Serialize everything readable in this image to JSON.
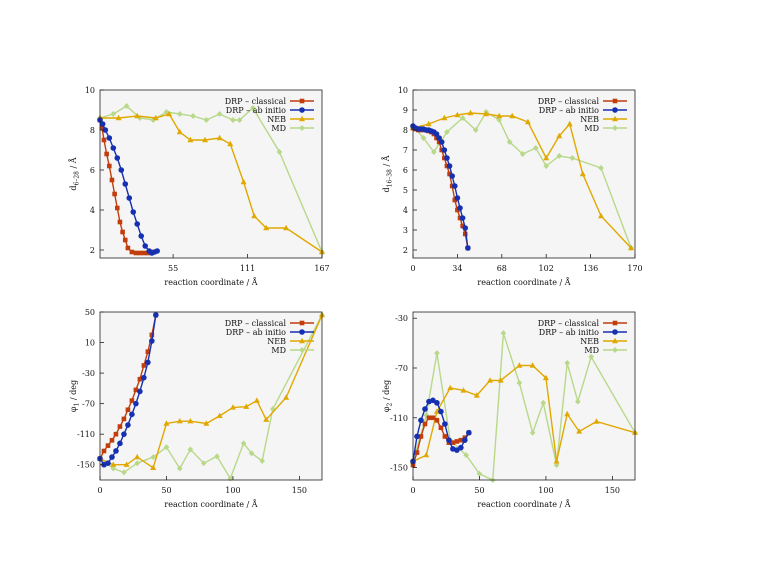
{
  "colors": {
    "classical": "#c23d0c",
    "abinitio": "#1530b0",
    "neb": "#e0a800",
    "md": "#b8d88a",
    "plot_bg": "#f5f5f5"
  },
  "chart_data": [
    {
      "type": "line",
      "xlabel": "reaction coordinate / Å",
      "ylabel": "d6–28 / Å",
      "ylabel_main": "d",
      "ylabel_sub": "6–28",
      "ylabel_unit": " / Å",
      "xlim": [
        0,
        167
      ],
      "ylim": [
        1.6,
        10
      ],
      "xticks": [
        55,
        111,
        167
      ],
      "yticks": [
        2,
        4,
        6,
        8,
        10
      ],
      "grid": false,
      "legend_position": "top-right",
      "series": [
        {
          "name": "DRP – classical",
          "marker": "square",
          "x": [
            0,
            1.5,
            3,
            5,
            7,
            9,
            11,
            13,
            15,
            17,
            19,
            21,
            24,
            27,
            30,
            33,
            36,
            38
          ],
          "y": [
            8.5,
            8.1,
            7.5,
            6.8,
            6.2,
            5.5,
            4.8,
            4.1,
            3.4,
            2.9,
            2.5,
            2.1,
            1.9,
            1.85,
            1.85,
            1.85,
            1.85,
            1.9
          ]
        },
        {
          "name": "DRP – ab initio",
          "marker": "circle",
          "x": [
            0,
            2,
            4,
            7,
            10,
            13,
            16,
            19,
            22,
            25,
            28,
            31,
            34,
            37,
            39,
            41,
            43
          ],
          "y": [
            8.5,
            8.3,
            8.0,
            7.6,
            7.1,
            6.6,
            6.0,
            5.3,
            4.6,
            3.9,
            3.3,
            2.7,
            2.2,
            1.95,
            1.85,
            1.9,
            1.95
          ]
        },
        {
          "name": "NEB",
          "marker": "triangle",
          "x": [
            0,
            14,
            28,
            42,
            52,
            60,
            68,
            79,
            90,
            98,
            108,
            116,
            125,
            140,
            167
          ],
          "y": [
            8.6,
            8.6,
            8.7,
            8.6,
            8.8,
            7.9,
            7.5,
            7.5,
            7.6,
            7.3,
            5.4,
            3.7,
            3.1,
            3.1,
            1.9
          ]
        },
        {
          "name": "MD",
          "marker": "diamond",
          "x": [
            0,
            10,
            20,
            30,
            40,
            50,
            60,
            70,
            80,
            90,
            100,
            105,
            115,
            135,
            167
          ],
          "y": [
            8.6,
            8.8,
            9.2,
            8.6,
            8.5,
            8.9,
            8.8,
            8.7,
            8.5,
            8.8,
            8.5,
            8.5,
            9.1,
            6.9,
            1.9
          ]
        }
      ]
    },
    {
      "type": "line",
      "xlabel": "reaction coordinate / Å",
      "ylabel": "d16–38 / Å",
      "ylabel_main": "d",
      "ylabel_sub": "16–38",
      "ylabel_unit": " / Å",
      "xlim": [
        0,
        170
      ],
      "ylim": [
        1.6,
        10
      ],
      "xticks": [
        0,
        34,
        68,
        102,
        136,
        170
      ],
      "yticks": [
        2,
        3,
        4,
        5,
        6,
        7,
        8,
        9,
        10
      ],
      "grid": false,
      "legend_position": "top-right",
      "series": [
        {
          "name": "DRP – classical",
          "marker": "square",
          "x": [
            0,
            2,
            4,
            6,
            8,
            10,
            12,
            14,
            16,
            18,
            20,
            22,
            24,
            26,
            28,
            30,
            32,
            34,
            36,
            38,
            40,
            42
          ],
          "y": [
            8.1,
            8.05,
            8.0,
            8.0,
            8.0,
            8.0,
            7.95,
            7.9,
            7.8,
            7.6,
            7.4,
            7.0,
            6.6,
            6.2,
            5.8,
            5.2,
            4.5,
            4.0,
            3.6,
            3.2,
            2.8,
            2.1
          ]
        },
        {
          "name": "DRP – ab initio",
          "marker": "circle",
          "x": [
            0,
            2,
            4,
            6,
            8,
            10,
            12,
            14,
            16,
            18,
            20,
            22,
            24,
            26,
            28,
            30,
            32,
            34,
            36,
            38,
            40,
            42
          ],
          "y": [
            8.2,
            8.1,
            8.05,
            8.05,
            8.05,
            8.0,
            8.0,
            7.95,
            7.9,
            7.8,
            7.6,
            7.4,
            7.0,
            6.6,
            6.2,
            5.7,
            5.2,
            4.6,
            4.1,
            3.6,
            3.1,
            2.1
          ]
        },
        {
          "name": "NEB",
          "marker": "triangle",
          "x": [
            0,
            12,
            24,
            34,
            44,
            56,
            66,
            76,
            88,
            102,
            112,
            120,
            130,
            144,
            167
          ],
          "y": [
            8.1,
            8.3,
            8.6,
            8.75,
            8.85,
            8.8,
            8.7,
            8.7,
            8.4,
            6.6,
            7.7,
            8.3,
            5.8,
            3.7,
            2.1
          ]
        },
        {
          "name": "MD",
          "marker": "diamond",
          "x": [
            0,
            8,
            16,
            26,
            38,
            48,
            56,
            66,
            74,
            84,
            94,
            102,
            112,
            122,
            144,
            167
          ],
          "y": [
            8.2,
            7.6,
            6.9,
            7.9,
            8.6,
            8.0,
            8.9,
            8.5,
            7.4,
            6.8,
            7.1,
            6.2,
            6.7,
            6.6,
            6.1,
            2.1
          ]
        }
      ]
    },
    {
      "type": "line",
      "xlabel": "reaction coordinate / Å",
      "ylabel": "φ1 / deg",
      "ylabel_main": "φ",
      "ylabel_sub": "1",
      "ylabel_unit": " / deg",
      "xlim": [
        0,
        167
      ],
      "ylim": [
        -170,
        50
      ],
      "xticks": [
        0,
        50,
        100,
        150
      ],
      "yticks": [
        -150,
        -110,
        -70,
        -30,
        10,
        50
      ],
      "grid": false,
      "legend_position": "top-right",
      "series": [
        {
          "name": "DRP – classical",
          "marker": "square",
          "x": [
            0,
            3,
            6,
            9,
            12,
            15,
            18,
            21,
            24,
            27,
            30,
            33,
            36,
            39,
            42
          ],
          "y": [
            -142,
            -132,
            -125,
            -118,
            -110,
            -100,
            -90,
            -78,
            -66,
            -52,
            -38,
            -20,
            -2,
            20,
            46
          ]
        },
        {
          "name": "DRP – ab initio",
          "marker": "circle",
          "x": [
            0,
            3,
            6,
            9,
            12,
            15,
            18,
            21,
            24,
            27,
            30,
            33,
            36,
            39,
            42
          ],
          "y": [
            -142,
            -150,
            -148,
            -140,
            -132,
            -122,
            -110,
            -98,
            -84,
            -70,
            -54,
            -36,
            -16,
            12,
            46
          ]
        },
        {
          "name": "NEB",
          "marker": "triangle",
          "x": [
            0,
            10,
            20,
            28,
            40,
            50,
            60,
            68,
            80,
            90,
            100,
            110,
            118,
            125,
            140,
            167
          ],
          "y": [
            -142,
            -150,
            -150,
            -140,
            -154,
            -96,
            -93,
            -93,
            -96,
            -86,
            -75,
            -74,
            -66,
            -91,
            -62,
            46
          ]
        },
        {
          "name": "MD",
          "marker": "diamond",
          "x": [
            0,
            10,
            18,
            28,
            40,
            50,
            60,
            68,
            78,
            88,
            98,
            108,
            114,
            122,
            130,
            167
          ],
          "y": [
            -142,
            -155,
            -160,
            -148,
            -140,
            -127,
            -155,
            -130,
            -148,
            -139,
            -168,
            -122,
            -135,
            -145,
            -77,
            46
          ]
        }
      ]
    },
    {
      "type": "line",
      "xlabel": "reaction coordinate / Å",
      "ylabel": "φ2 / deg",
      "ylabel_main": "φ",
      "ylabel_sub": "2",
      "ylabel_unit": " / deg",
      "xlim": [
        0,
        167
      ],
      "ylim": [
        -160,
        -25
      ],
      "xticks": [
        0,
        50,
        100,
        150
      ],
      "yticks": [
        -150,
        -110,
        -70,
        -30
      ],
      "grid": false,
      "legend_position": "top-right",
      "series": [
        {
          "name": "DRP – classical",
          "marker": "square",
          "x": [
            0,
            3,
            6,
            9,
            12,
            15,
            18,
            21,
            24,
            27,
            30,
            33,
            36,
            39,
            42
          ],
          "y": [
            -148,
            -138,
            -125,
            -115,
            -110,
            -110,
            -112,
            -118,
            -125,
            -130,
            -130,
            -129,
            -128,
            -126,
            -122
          ]
        },
        {
          "name": "DRP – ab initio",
          "marker": "circle",
          "x": [
            0,
            3,
            6,
            9,
            12,
            15,
            18,
            21,
            24,
            27,
            30,
            33,
            36,
            39,
            42
          ],
          "y": [
            -145,
            -125,
            -112,
            -103,
            -97,
            -96,
            -98,
            -105,
            -115,
            -128,
            -135,
            -136,
            -134,
            -128,
            -122
          ]
        },
        {
          "name": "NEB",
          "marker": "triangle",
          "x": [
            0,
            10,
            18,
            28,
            38,
            48,
            58,
            66,
            80,
            90,
            100,
            108,
            116,
            125,
            138,
            167
          ],
          "y": [
            -145,
            -140,
            -105,
            -86,
            -88,
            -92,
            -80,
            -80,
            -68,
            -68,
            -78,
            -145,
            -107,
            -121,
            -113,
            -122
          ]
        },
        {
          "name": "MD",
          "marker": "diamond",
          "x": [
            0,
            10,
            18,
            28,
            40,
            50,
            60,
            68,
            80,
            90,
            98,
            108,
            116,
            124,
            134,
            167
          ],
          "y": [
            -145,
            -108,
            -58,
            -128,
            -140,
            -155,
            -160,
            -42,
            -82,
            -122,
            -98,
            -148,
            -66,
            -97,
            -61,
            -122
          ]
        }
      ]
    }
  ]
}
